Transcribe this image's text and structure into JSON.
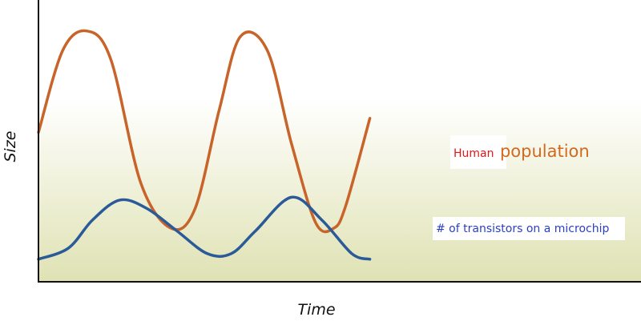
{
  "chart_data": {
    "type": "line",
    "title": "",
    "xlabel": "Time",
    "ylabel": "Size",
    "grid": false,
    "legend": "none",
    "background": {
      "top_color": "#ffffff",
      "bottom_color": "#dfe2b3"
    },
    "series": [
      {
        "color": "#c8642a",
        "points": [
          [
            0.0,
            0.53
          ],
          [
            0.04,
            0.82
          ],
          [
            0.08,
            0.89
          ],
          [
            0.12,
            0.79
          ],
          [
            0.17,
            0.35
          ],
          [
            0.22,
            0.19
          ],
          [
            0.26,
            0.26
          ],
          [
            0.3,
            0.61
          ],
          [
            0.335,
            0.87
          ],
          [
            0.38,
            0.82
          ],
          [
            0.42,
            0.49
          ],
          [
            0.46,
            0.21
          ],
          [
            0.49,
            0.19
          ],
          [
            0.51,
            0.27
          ],
          [
            0.55,
            0.58
          ]
        ]
      },
      {
        "color": "#2b5a99",
        "points": [
          [
            0.0,
            0.08
          ],
          [
            0.05,
            0.12
          ],
          [
            0.09,
            0.22
          ],
          [
            0.135,
            0.29
          ],
          [
            0.18,
            0.26
          ],
          [
            0.23,
            0.18
          ],
          [
            0.28,
            0.1
          ],
          [
            0.32,
            0.1
          ],
          [
            0.36,
            0.18
          ],
          [
            0.42,
            0.3
          ],
          [
            0.47,
            0.22
          ],
          [
            0.52,
            0.1
          ],
          [
            0.55,
            0.08
          ]
        ]
      }
    ],
    "annotations": {
      "human": {
        "part1": "Human",
        "part1_color": "#e01818",
        "part2": "population",
        "part2_color": "#d2691e"
      },
      "transistors": {
        "text": "# of transistors on a microchip",
        "color": "#2b3fbf"
      }
    }
  }
}
